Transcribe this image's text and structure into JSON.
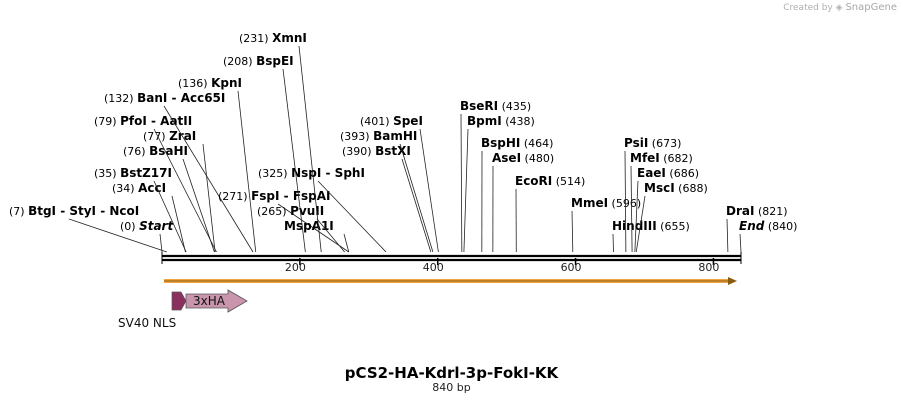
{
  "credit": {
    "prefix": "Created by",
    "brand": "SnapGene"
  },
  "plasmid": {
    "name": "pCS2-HA-Kdrl-3p-FokI-KK",
    "length_label": "840 bp",
    "length": 840
  },
  "ruler": {
    "ticks": [
      {
        "pos": 200,
        "label": "200"
      },
      {
        "pos": 400,
        "label": "400"
      },
      {
        "pos": 600,
        "label": "600"
      },
      {
        "pos": 800,
        "label": "800"
      }
    ]
  },
  "sites": [
    {
      "id": "start",
      "pos": "(0)",
      "names": [
        "Start"
      ],
      "italic": true,
      "bp": 0,
      "row": 0
    },
    {
      "id": "btgi",
      "pos": "(7)",
      "names": [
        "BtgI",
        "StyI",
        "NcoI"
      ],
      "bp": 7,
      "row": 1
    },
    {
      "id": "acci",
      "pos": "(34)",
      "names": [
        "AccI"
      ],
      "bp": 34,
      "row": 2
    },
    {
      "id": "bstz17i",
      "pos": "(35)",
      "names": [
        "BstZ17I"
      ],
      "bp": 35,
      "row": 3
    },
    {
      "id": "bsahi",
      "pos": "(76)",
      "names": [
        "BsaHI"
      ],
      "bp": 76,
      "row": 5
    },
    {
      "id": "zrai",
      "pos": "(77)",
      "names": [
        "ZraI"
      ],
      "bp": 77,
      "row": 6
    },
    {
      "id": "pfoi",
      "pos": "(79)",
      "names": [
        "PfoI",
        "AatII"
      ],
      "bp": 79,
      "row": 7
    },
    {
      "id": "bani",
      "pos": "(132)",
      "names": [
        "BanI",
        "Acc65I"
      ],
      "bp": 132,
      "row": 9
    },
    {
      "id": "kpni",
      "pos": "(136)",
      "names": [
        "KpnI"
      ],
      "bp": 136,
      "row": 10
    },
    {
      "id": "fspi",
      "pos": "(271)",
      "names": [
        "FspI",
        "FspAI"
      ],
      "bp": 271,
      "row": 2,
      "side": "left"
    },
    {
      "id": "mspa1i",
      "pos": "",
      "names": [
        "MspA1I"
      ],
      "bp": 271,
      "row": 0,
      "side": "left"
    },
    {
      "id": "pvuii",
      "pos": "(265)",
      "names": [
        "PvuII"
      ],
      "bp": 265,
      "row": 1,
      "side": "left"
    },
    {
      "id": "nspi",
      "pos": "(325)",
      "names": [
        "NspI",
        "SphI"
      ],
      "bp": 325,
      "row": 3,
      "side": "left"
    },
    {
      "id": "bspei",
      "pos": "(208)",
      "names": [
        "BspEI"
      ],
      "bp": 208,
      "row": 12
    },
    {
      "id": "xmni",
      "pos": "(231)",
      "names": [
        "XmnI"
      ],
      "bp": 231,
      "row": 14
    },
    {
      "id": "bstxi",
      "pos": "(390)",
      "names": [
        "BstXI"
      ],
      "bp": 390,
      "row": 5
    },
    {
      "id": "bamhi",
      "pos": "(393)",
      "names": [
        "BamHI"
      ],
      "bp": 393,
      "row": 6
    },
    {
      "id": "spei",
      "pos": "(401)",
      "names": [
        "SpeI"
      ],
      "bp": 401,
      "row": 7
    },
    {
      "id": "bseri",
      "pos": "(435)",
      "names": [
        "BseRI"
      ],
      "bp": 435,
      "row": 8,
      "side": "right"
    },
    {
      "id": "bpmi",
      "pos": "(438)",
      "names": [
        "BpmI"
      ],
      "bp": 438,
      "row": 7,
      "side": "right"
    },
    {
      "id": "bsphi",
      "pos": "(464)",
      "names": [
        "BspHI"
      ],
      "bp": 464,
      "row": 5,
      "side": "right"
    },
    {
      "id": "asei",
      "pos": "(480)",
      "names": [
        "AseI"
      ],
      "bp": 480,
      "row": 4,
      "side": "right"
    },
    {
      "id": "ecori",
      "pos": "(514)",
      "names": [
        "EcoRI"
      ],
      "bp": 514,
      "row": 3,
      "side": "right"
    },
    {
      "id": "mmei",
      "pos": "(596)",
      "names": [
        "MmeI"
      ],
      "bp": 596,
      "row": 1,
      "side": "right"
    },
    {
      "id": "hindiii",
      "pos": "(655)",
      "names": [
        "HindIII"
      ],
      "bp": 655,
      "row": 0,
      "side": "right"
    },
    {
      "id": "psii",
      "pos": "(673)",
      "names": [
        "PsiI"
      ],
      "bp": 673,
      "row": 5,
      "side": "right"
    },
    {
      "id": "mfei",
      "pos": "(682)",
      "names": [
        "MfeI"
      ],
      "bp": 682,
      "row": 4,
      "side": "right"
    },
    {
      "id": "eaei",
      "pos": "(686)",
      "names": [
        "EaeI"
      ],
      "bp": 686,
      "row": 3,
      "side": "right"
    },
    {
      "id": "msci",
      "pos": "(688)",
      "names": [
        "MscI"
      ],
      "bp": 688,
      "row": 2,
      "side": "right"
    },
    {
      "id": "drai",
      "pos": "(821)",
      "names": [
        "DraI"
      ],
      "bp": 821,
      "row": 1,
      "side": "right"
    },
    {
      "id": "end",
      "pos": "(840)",
      "names": [
        "End"
      ],
      "italic": true,
      "bp": 840,
      "row": 0,
      "side": "right"
    }
  ],
  "features": [
    {
      "id": "sv40-nls",
      "label": "SV40 NLS",
      "color": "#8b2f5f"
    },
    {
      "id": "3xha",
      "label": "3xHA",
      "color": "#c995ad"
    }
  ],
  "colors": {
    "orf": "#f2a640",
    "backbone": "#000000"
  }
}
